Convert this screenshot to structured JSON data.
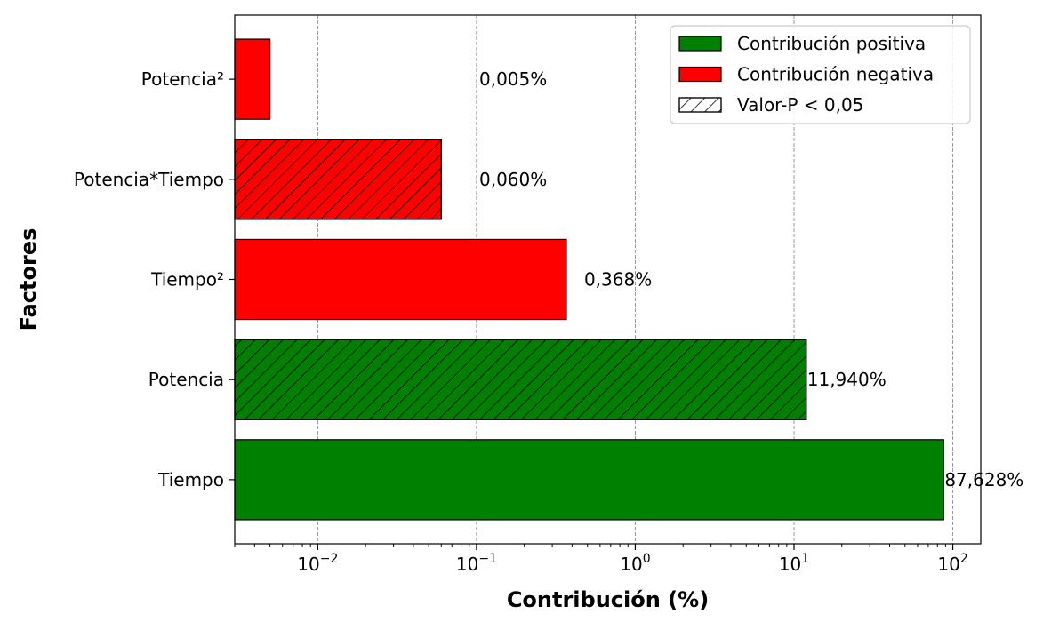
{
  "chart_data": {
    "type": "bar",
    "orientation": "horizontal",
    "title": "",
    "xlabel": "Contribución (%)",
    "ylabel": "Factores",
    "x_scale": "log",
    "xlim": [
      0.003,
      150
    ],
    "x_ticks": [
      {
        "value": 0.01,
        "base": "10",
        "exp": "−2"
      },
      {
        "value": 0.1,
        "base": "10",
        "exp": "−1"
      },
      {
        "value": 1,
        "base": "10",
        "exp": "0"
      },
      {
        "value": 10,
        "base": "10",
        "exp": "1"
      },
      {
        "value": 100,
        "base": "10",
        "exp": "2"
      }
    ],
    "grid": "x-major dashed",
    "legend_position": "top-right",
    "legend": [
      {
        "label": "Contribución positiva",
        "style": "positive"
      },
      {
        "label": "Contribución negativa",
        "style": "negative"
      },
      {
        "label": "Valor-P < 0,05",
        "style": "hatch"
      }
    ],
    "colors": {
      "positive": "#008000",
      "negative": "#ff0000",
      "edge": "#000000",
      "grid": "#808080"
    },
    "bars": [
      {
        "category": "Potencia²",
        "value": 0.005,
        "label": "0,005%",
        "sign": "negative",
        "significant": false
      },
      {
        "category": "Potencia*Tiempo",
        "value": 0.06,
        "label": "0,060%",
        "sign": "negative",
        "significant": true
      },
      {
        "category": "Tiempo²",
        "value": 0.368,
        "label": "0,368%",
        "sign": "negative",
        "significant": false
      },
      {
        "category": "Potencia",
        "value": 11.94,
        "label": "11,940%",
        "sign": "positive",
        "significant": true
      },
      {
        "category": "Tiempo",
        "value": 87.628,
        "label": "87,628%",
        "sign": "positive",
        "significant": false
      }
    ]
  }
}
